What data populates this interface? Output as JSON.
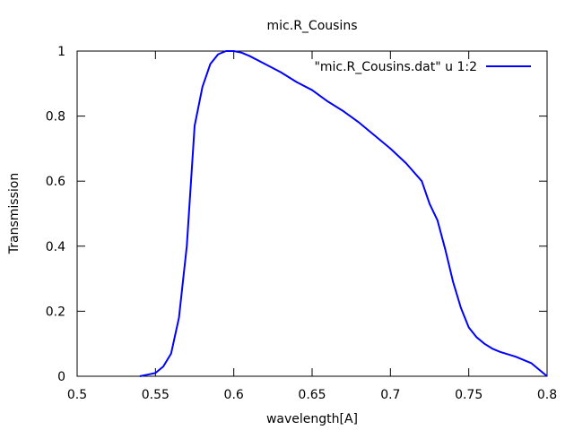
{
  "chart_data": {
    "type": "line",
    "title": "mic.R_Cousins",
    "xlabel": "wavelength[A]",
    "ylabel": "Transmission",
    "xlim": [
      0.5,
      0.8
    ],
    "ylim": [
      0,
      1
    ],
    "grid": false,
    "legend_position": "top-right",
    "x_ticks": [
      "0.5",
      "0.55",
      "0.6",
      "0.65",
      "0.7",
      "0.75",
      "0.8"
    ],
    "y_ticks": [
      "0",
      "0.2",
      "0.4",
      "0.6",
      "0.8",
      "1"
    ],
    "series": [
      {
        "name": "\"mic.R_Cousins.dat\" u 1:2",
        "color": "#0000ff",
        "x": [
          0.54,
          0.545,
          0.55,
          0.555,
          0.56,
          0.565,
          0.57,
          0.575,
          0.58,
          0.585,
          0.59,
          0.595,
          0.6,
          0.605,
          0.61,
          0.62,
          0.63,
          0.64,
          0.65,
          0.66,
          0.67,
          0.68,
          0.69,
          0.7,
          0.71,
          0.72,
          0.725,
          0.73,
          0.735,
          0.74,
          0.745,
          0.75,
          0.755,
          0.76,
          0.765,
          0.77,
          0.78,
          0.79,
          0.795,
          0.8
        ],
        "y": [
          0.0,
          0.005,
          0.01,
          0.03,
          0.07,
          0.18,
          0.4,
          0.77,
          0.89,
          0.96,
          0.99,
          1.0,
          1.0,
          0.995,
          0.985,
          0.96,
          0.935,
          0.905,
          0.88,
          0.845,
          0.815,
          0.78,
          0.74,
          0.7,
          0.655,
          0.6,
          0.53,
          0.48,
          0.39,
          0.29,
          0.21,
          0.15,
          0.12,
          0.1,
          0.085,
          0.075,
          0.06,
          0.04,
          0.02,
          0.0
        ]
      }
    ]
  }
}
